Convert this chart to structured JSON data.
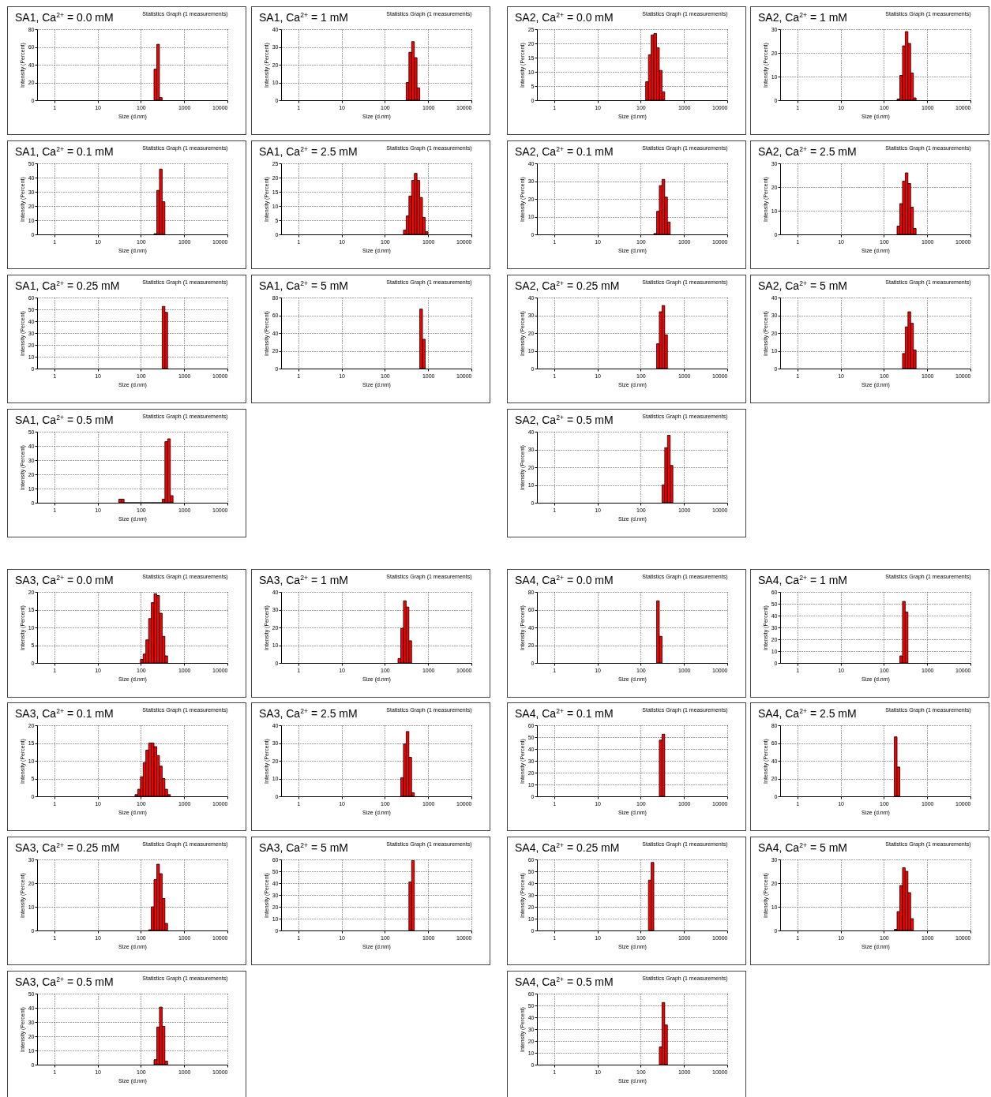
{
  "chart_data": [
    {
      "type": "histogram",
      "title": "SA1, Ca$^{2+}$ = 0.0 mM",
      "subtitle": "Statistics Graph (1 measurements)",
      "xlabel": "Size (d.nm)",
      "ylabel": "Intensity (Percent)",
      "bins": [
        201,
        233,
        269,
        311
      ],
      "values": [
        35,
        63,
        3
      ],
      "color": "#ff0000",
      "xlim": [
        0.4,
        10000
      ],
      "xticks": [
        1,
        10,
        100,
        1000,
        10000
      ],
      "ylim": [
        0,
        80
      ],
      "yticks": [
        0,
        20,
        40,
        60,
        80
      ],
      "log": "x",
      "grid": true
    },
    {
      "type": "histogram",
      "title": "SA1, Ca$^{2+}$ = 1 mM",
      "subtitle": "Statistics Graph (1 measurements)",
      "xlabel": "Size (d.nm)",
      "ylabel": "Intensity (Percent)",
      "bins": [
        311,
        359,
        415,
        480,
        554,
        640
      ],
      "values": [
        10,
        27,
        33,
        24,
        7
      ],
      "color": "#ff0000",
      "xlim": [
        0.4,
        10000
      ],
      "xticks": [
        1,
        10,
        100,
        1000,
        10000
      ],
      "ylim": [
        0,
        40
      ],
      "yticks": [
        0,
        10,
        20,
        30,
        40
      ],
      "log": "x",
      "grid": true
    },
    {
      "type": "histogram",
      "title": "SA2, Ca$^{2+}$ = 0.0 mM",
      "subtitle": "Statistics Graph (1 measurements)",
      "xlabel": "Size (d.nm)",
      "ylabel": "Intensity (Percent)",
      "bins": [
        130,
        151,
        174,
        201,
        233,
        269,
        311,
        359
      ],
      "values": [
        6.5,
        16,
        23,
        23.5,
        18.5,
        10.5,
        3
      ],
      "color": "#ff0000",
      "xlim": [
        0.4,
        10000
      ],
      "xticks": [
        1,
        10,
        100,
        1000,
        10000
      ],
      "ylim": [
        0,
        25
      ],
      "yticks": [
        0,
        5,
        10,
        15,
        20,
        25
      ],
      "log": "x",
      "grid": true
    },
    {
      "type": "histogram",
      "title": "SA2, Ca$^{2+}$ = 1 mM",
      "subtitle": "Statistics Graph (1 measurements)",
      "xlabel": "Size (d.nm)",
      "ylabel": "Intensity (Percent)",
      "bins": [
        201,
        233,
        269,
        311,
        359,
        415,
        480,
        554
      ],
      "values": [
        0.5,
        10.5,
        23,
        29,
        24,
        11.5,
        1
      ],
      "color": "#ff0000",
      "xlim": [
        0.4,
        10000
      ],
      "xticks": [
        1,
        10,
        100,
        1000,
        10000
      ],
      "ylim": [
        0,
        30
      ],
      "yticks": [
        0,
        10,
        20,
        30
      ],
      "log": "x",
      "grid": true
    },
    {
      "type": "histogram",
      "title": "SA1, Ca$^{2+}$ = 0.1 mM",
      "subtitle": "Statistics Graph (1 measurements)",
      "xlabel": "Size (d.nm)",
      "ylabel": "Intensity (Percent)",
      "bins": [
        201,
        233,
        269,
        311,
        359
      ],
      "values": [
        0.5,
        31,
        46,
        23
      ],
      "color": "#ff0000",
      "xlim": [
        0.4,
        10000
      ],
      "xticks": [
        1,
        10,
        100,
        1000,
        10000
      ],
      "ylim": [
        0,
        50
      ],
      "yticks": [
        0,
        10,
        20,
        30,
        40,
        50
      ],
      "log": "x",
      "grid": true
    },
    {
      "type": "histogram",
      "title": "SA1, Ca$^{2+}$ = 2.5 mM",
      "subtitle": "Statistics Graph (1 measurements)",
      "xlabel": "Size (d.nm)",
      "ylabel": "Intensity (Percent)",
      "bins": [
        269,
        311,
        359,
        415,
        480,
        554,
        640,
        740,
        855,
        988
      ],
      "values": [
        1.5,
        6.5,
        13.5,
        19,
        21.5,
        19,
        13,
        6,
        1
      ],
      "color": "#ff0000",
      "xlim": [
        0.4,
        10000
      ],
      "xticks": [
        1,
        10,
        100,
        1000,
        10000
      ],
      "ylim": [
        0,
        25
      ],
      "yticks": [
        0,
        5,
        10,
        15,
        20,
        25
      ],
      "log": "x",
      "grid": true
    },
    {
      "type": "histogram",
      "title": "SA2, Ca$^{2+}$ = 0.1 mM",
      "subtitle": "Statistics Graph (1 measurements)",
      "xlabel": "Size (d.nm)",
      "ylabel": "Intensity (Percent)",
      "bins": [
        201,
        233,
        269,
        311,
        359,
        415,
        480
      ],
      "values": [
        0.5,
        13,
        27.5,
        31,
        21,
        7
      ],
      "color": "#ff0000",
      "xlim": [
        0.4,
        10000
      ],
      "xticks": [
        1,
        10,
        100,
        1000,
        10000
      ],
      "ylim": [
        0,
        40
      ],
      "yticks": [
        0,
        10,
        20,
        30,
        40
      ],
      "log": "x",
      "grid": true
    },
    {
      "type": "histogram",
      "title": "SA2, Ca$^{2+}$ = 2.5 mM",
      "subtitle": "Statistics Graph (1 measurements)",
      "xlabel": "Size (d.nm)",
      "ylabel": "Intensity (Percent)",
      "bins": [
        201,
        233,
        269,
        311,
        359,
        415,
        480,
        554
      ],
      "values": [
        3.5,
        13,
        22.5,
        26,
        21.5,
        11.5,
        2.5
      ],
      "color": "#ff0000",
      "xlim": [
        0.4,
        10000
      ],
      "xticks": [
        1,
        10,
        100,
        1000,
        10000
      ],
      "ylim": [
        0,
        30
      ],
      "yticks": [
        0,
        10,
        20,
        30
      ],
      "log": "x",
      "grid": true
    },
    {
      "type": "histogram",
      "title": "SA1, Ca$^{2+}$ = 0.25 mM",
      "subtitle": "Statistics Graph (1 measurements)",
      "xlabel": "Size (d.nm)",
      "ylabel": "Intensity (Percent)",
      "bins": [
        311,
        359,
        415
      ],
      "values": [
        52.5,
        47.5
      ],
      "color": "#ff0000",
      "xlim": [
        0.4,
        10000
      ],
      "xticks": [
        1,
        10,
        100,
        1000,
        10000
      ],
      "ylim": [
        0,
        60
      ],
      "yticks": [
        0,
        10,
        20,
        30,
        40,
        50,
        60
      ],
      "log": "x",
      "grid": true
    },
    {
      "type": "histogram",
      "title": "SA1, Ca$^{2+}$ = 5 mM",
      "subtitle": "Statistics Graph (1 measurements)",
      "xlabel": "Size (d.nm)",
      "ylabel": "Intensity (Percent)",
      "bins": [
        640,
        740,
        855
      ],
      "values": [
        67,
        33
      ],
      "color": "#ff0000",
      "xlim": [
        0.4,
        10000
      ],
      "xticks": [
        1,
        10,
        100,
        1000,
        10000
      ],
      "ylim": [
        0,
        80
      ],
      "yticks": [
        0,
        20,
        40,
        60,
        80
      ],
      "log": "x",
      "grid": true
    },
    {
      "type": "histogram",
      "title": "SA2, Ca$^{2+}$ = 0.25 mM",
      "subtitle": "Statistics Graph (1 measurements)",
      "xlabel": "Size (d.nm)",
      "ylabel": "Intensity (Percent)",
      "bins": [
        233,
        269,
        311,
        359,
        415
      ],
      "values": [
        14,
        32,
        35.5,
        19
      ],
      "color": "#ff0000",
      "xlim": [
        0.4,
        10000
      ],
      "xticks": [
        1,
        10,
        100,
        1000,
        10000
      ],
      "ylim": [
        0,
        40
      ],
      "yticks": [
        0,
        10,
        20,
        30,
        40
      ],
      "log": "x",
      "grid": true
    },
    {
      "type": "histogram",
      "title": "SA2, Ca$^{2+}$ = 5 mM",
      "subtitle": "Statistics Graph (1 measurements)",
      "xlabel": "Size (d.nm)",
      "ylabel": "Intensity (Percent)",
      "bins": [
        269,
        311,
        359,
        415,
        480,
        554
      ],
      "values": [
        8.5,
        23.5,
        32,
        25.5,
        10.5
      ],
      "color": "#ff0000",
      "xlim": [
        0.4,
        10000
      ],
      "xticks": [
        1,
        10,
        100,
        1000,
        10000
      ],
      "ylim": [
        0,
        40
      ],
      "yticks": [
        0,
        10,
        20,
        30,
        40
      ],
      "log": "x",
      "grid": true
    },
    {
      "type": "histogram",
      "title": "SA1, Ca$^{2+}$ = 0.5 mM",
      "subtitle": "Statistics Graph (1 measurements)",
      "xlabel": "Size (d.nm)",
      "ylabel": "Intensity (Percent)",
      "bins": [
        30.7,
        35.5,
        41.0,
        47.4,
        54.7,
        63.2,
        73.1,
        84.5,
        97.6,
        113,
        130,
        151,
        174,
        201,
        233,
        269,
        311,
        359,
        415,
        480,
        554
      ],
      "values": [
        2.5,
        2.5,
        0,
        0,
        0,
        0,
        0,
        0,
        0,
        0,
        0,
        0,
        0,
        0,
        0,
        0,
        2.5,
        43,
        45,
        5
      ],
      "color": "#ff0000",
      "xlim": [
        0.4,
        10000
      ],
      "xticks": [
        1,
        10,
        100,
        1000,
        10000
      ],
      "ylim": [
        0,
        50
      ],
      "yticks": [
        0,
        10,
        20,
        30,
        40,
        50
      ],
      "log": "x",
      "grid": true
    },
    {
      "type": "histogram",
      "title": "SA2, Ca$^{2+}$ = 0.5 mM",
      "subtitle": "Statistics Graph (1 measurements)",
      "xlabel": "Size (d.nm)",
      "ylabel": "Intensity (Percent)",
      "bins": [
        311,
        359,
        415,
        480,
        554
      ],
      "values": [
        10,
        31,
        38,
        21
      ],
      "color": "#ff0000",
      "xlim": [
        0.4,
        10000
      ],
      "xticks": [
        1,
        10,
        100,
        1000,
        10000
      ],
      "ylim": [
        0,
        40
      ],
      "yticks": [
        0,
        10,
        20,
        30,
        40
      ],
      "log": "x",
      "grid": true
    },
    {
      "type": "histogram",
      "title": "SA3, Ca$^{2+}$ = 0.0 mM",
      "subtitle": "Statistics Graph (1 measurements)",
      "xlabel": "Size (d.nm)",
      "ylabel": "Intensity (Percent)",
      "bins": [
        97.6,
        113,
        130,
        151,
        174,
        201,
        233,
        269,
        311,
        359,
        415
      ],
      "values": [
        1,
        2.5,
        6.5,
        12.5,
        17,
        19.5,
        19,
        14,
        7.5,
        2
      ],
      "color": "#ff0000",
      "xlim": [
        0.4,
        10000
      ],
      "xticks": [
        1,
        10,
        100,
        1000,
        10000
      ],
      "ylim": [
        0,
        20
      ],
      "yticks": [
        0,
        5,
        10,
        15,
        20
      ],
      "log": "x",
      "grid": true
    },
    {
      "type": "histogram",
      "title": "SA3, Ca$^{2+}$ = 1 mM",
      "subtitle": "Statistics Graph (1 measurements)",
      "xlabel": "Size (d.nm)",
      "ylabel": "Intensity (Percent)",
      "bins": [
        201,
        233,
        269,
        311,
        359,
        415
      ],
      "values": [
        2.5,
        19.5,
        35,
        31.5,
        12.5
      ],
      "color": "#ff0000",
      "xlim": [
        0.4,
        10000
      ],
      "xticks": [
        1,
        10,
        100,
        1000,
        10000
      ],
      "ylim": [
        0,
        40
      ],
      "yticks": [
        0,
        10,
        20,
        30,
        40
      ],
      "log": "x",
      "grid": true
    },
    {
      "type": "histogram",
      "title": "SA4, Ca$^{2+}$ = 0.0 mM",
      "subtitle": "Statistics Graph (1 measurements)",
      "xlabel": "Size (d.nm)",
      "ylabel": "Intensity (Percent)",
      "bins": [
        233,
        269,
        311
      ],
      "values": [
        70,
        30
      ],
      "color": "#ff0000",
      "xlim": [
        0.4,
        10000
      ],
      "xticks": [
        1,
        10,
        100,
        1000,
        10000
      ],
      "ylim": [
        0,
        80
      ],
      "yticks": [
        0,
        20,
        40,
        60,
        80
      ],
      "log": "x",
      "grid": true
    },
    {
      "type": "histogram",
      "title": "SA4, Ca$^{2+}$ = 1 mM",
      "subtitle": "Statistics Graph (1 measurements)",
      "xlabel": "Size (d.nm)",
      "ylabel": "Intensity (Percent)",
      "bins": [
        233,
        269,
        311,
        359
      ],
      "values": [
        6,
        52,
        43
      ],
      "color": "#ff0000",
      "xlim": [
        0.4,
        10000
      ],
      "xticks": [
        1,
        10,
        100,
        1000,
        10000
      ],
      "ylim": [
        0,
        60
      ],
      "yticks": [
        0,
        10,
        20,
        30,
        40,
        50,
        60
      ],
      "log": "x",
      "grid": true
    },
    {
      "type": "histogram",
      "title": "SA3, Ca$^{2+}$ = 0.1 mM",
      "subtitle": "Statistics Graph (1 measurements)",
      "xlabel": "Size (d.nm)",
      "ylabel": "Intensity (Percent)",
      "bins": [
        73.1,
        84.5,
        97.6,
        113,
        130,
        151,
        174,
        201,
        233,
        269,
        311,
        359,
        415,
        480
      ],
      "values": [
        0.5,
        2,
        5.5,
        9.5,
        13,
        15,
        15,
        14,
        11.5,
        8.5,
        5,
        2,
        0.5
      ],
      "color": "#ff0000",
      "xlim": [
        0.4,
        10000
      ],
      "xticks": [
        1,
        10,
        100,
        1000,
        10000
      ],
      "ylim": [
        0,
        20
      ],
      "yticks": [
        0,
        5,
        10,
        15,
        20
      ],
      "log": "x",
      "grid": true
    },
    {
      "type": "histogram",
      "title": "SA3, Ca$^{2+}$ = 2.5 mM",
      "subtitle": "Statistics Graph (1 measurements)",
      "xlabel": "Size (d.nm)",
      "ylabel": "Intensity (Percent)",
      "bins": [
        233,
        269,
        311,
        359,
        415,
        480
      ],
      "values": [
        10.5,
        29.5,
        36.5,
        22,
        2
      ],
      "color": "#ff0000",
      "xlim": [
        0.4,
        10000
      ],
      "xticks": [
        1,
        10,
        100,
        1000,
        10000
      ],
      "ylim": [
        0,
        40
      ],
      "yticks": [
        0,
        10,
        20,
        30,
        40
      ],
      "log": "x",
      "grid": true
    },
    {
      "type": "histogram",
      "title": "SA4, Ca$^{2+}$ = 0.1 mM",
      "subtitle": "Statistics Graph (1 measurements)",
      "xlabel": "Size (d.nm)",
      "ylabel": "Intensity (Percent)",
      "bins": [
        269,
        311,
        359
      ],
      "values": [
        47.5,
        52.5
      ],
      "color": "#ff0000",
      "xlim": [
        0.4,
        10000
      ],
      "xticks": [
        1,
        10,
        100,
        1000,
        10000
      ],
      "ylim": [
        0,
        60
      ],
      "yticks": [
        0,
        10,
        20,
        30,
        40,
        50,
        60
      ],
      "log": "x",
      "grid": true
    },
    {
      "type": "histogram",
      "title": "SA4, Ca$^{2+}$ = 2.5 mM",
      "subtitle": "Statistics Graph (1 measurements)",
      "xlabel": "Size (d.nm)",
      "ylabel": "Intensity (Percent)",
      "bins": [
        174,
        201,
        233
      ],
      "values": [
        67,
        33
      ],
      "color": "#ff0000",
      "xlim": [
        0.4,
        10000
      ],
      "xticks": [
        1,
        10,
        100,
        1000,
        10000
      ],
      "ylim": [
        0,
        80
      ],
      "yticks": [
        0,
        20,
        40,
        60,
        80
      ],
      "log": "x",
      "grid": true
    },
    {
      "type": "histogram",
      "title": "SA3, Ca$^{2+}$ = 0.25 mM",
      "subtitle": "Statistics Graph (1 measurements)",
      "xlabel": "Size (d.nm)",
      "ylabel": "Intensity (Percent)",
      "bins": [
        151,
        174,
        201,
        233,
        269,
        311,
        359,
        415
      ],
      "values": [
        0.3,
        10,
        21.5,
        28,
        24,
        13.5,
        3
      ],
      "color": "#ff0000",
      "xlim": [
        0.4,
        10000
      ],
      "xticks": [
        1,
        10,
        100,
        1000,
        10000
      ],
      "ylim": [
        0,
        30
      ],
      "yticks": [
        0,
        10,
        20,
        30
      ],
      "log": "x",
      "grid": true
    },
    {
      "type": "histogram",
      "title": "SA3, Ca$^{2+}$ = 5 mM",
      "subtitle": "Statistics Graph (1 measurements)",
      "xlabel": "Size (d.nm)",
      "ylabel": "Intensity (Percent)",
      "bins": [
        359,
        415,
        480
      ],
      "values": [
        41,
        59
      ],
      "color": "#ff0000",
      "xlim": [
        0.4,
        10000
      ],
      "xticks": [
        1,
        10,
        100,
        1000,
        10000
      ],
      "ylim": [
        0,
        60
      ],
      "yticks": [
        0,
        10,
        20,
        30,
        40,
        50,
        60
      ],
      "log": "x",
      "grid": true
    },
    {
      "type": "histogram",
      "title": "SA4, Ca$^{2+}$ = 0.25 mM",
      "subtitle": "Statistics Graph (1 measurements)",
      "xlabel": "Size (d.nm)",
      "ylabel": "Intensity (Percent)",
      "bins": [
        151,
        174,
        201
      ],
      "values": [
        42.5,
        57.5
      ],
      "color": "#ff0000",
      "xlim": [
        0.4,
        10000
      ],
      "xticks": [
        1,
        10,
        100,
        1000,
        10000
      ],
      "ylim": [
        0,
        60
      ],
      "yticks": [
        0,
        10,
        20,
        30,
        40,
        50,
        60
      ],
      "log": "x",
      "grid": true
    },
    {
      "type": "histogram",
      "title": "SA4, Ca$^{2+}$ = 5 mM",
      "subtitle": "Statistics Graph (1 measurements)",
      "xlabel": "Size (d.nm)",
      "ylabel": "Intensity (Percent)",
      "bins": [
        174,
        201,
        233,
        269,
        311,
        359,
        415,
        480
      ],
      "values": [
        0.5,
        8,
        19,
        26.5,
        25,
        16,
        5
      ],
      "color": "#ff0000",
      "xlim": [
        0.4,
        10000
      ],
      "xticks": [
        1,
        10,
        100,
        1000,
        10000
      ],
      "ylim": [
        0,
        30
      ],
      "yticks": [
        0,
        10,
        20,
        30
      ],
      "log": "x",
      "grid": true
    },
    {
      "type": "histogram",
      "title": "SA3, Ca$^{2+}$ = 0.5 mM",
      "subtitle": "Statistics Graph (1 measurements)",
      "xlabel": "Size (d.nm)",
      "ylabel": "Intensity (Percent)",
      "bins": [
        201,
        233,
        269,
        311,
        359,
        415
      ],
      "values": [
        3.5,
        26.5,
        40.5,
        27,
        2.5
      ],
      "color": "#ff0000",
      "xlim": [
        0.4,
        10000
      ],
      "xticks": [
        1,
        10,
        100,
        1000,
        10000
      ],
      "ylim": [
        0,
        50
      ],
      "yticks": [
        0,
        10,
        20,
        30,
        40,
        50
      ],
      "log": "x",
      "grid": true
    },
    {
      "type": "histogram",
      "title": "SA4, Ca$^{2+}$ = 0.5 mM",
      "subtitle": "Statistics Graph (1 measurements)",
      "xlabel": "Size (d.nm)",
      "ylabel": "Intensity (Percent)",
      "bins": [
        269,
        311,
        359,
        415
      ],
      "values": [
        15,
        52.5,
        33.5
      ],
      "color": "#ff0000",
      "xlim": [
        0.4,
        10000
      ],
      "xticks": [
        1,
        10,
        100,
        1000,
        10000
      ],
      "ylim": [
        0,
        60
      ],
      "yticks": [
        0,
        10,
        20,
        30,
        40,
        50,
        60
      ],
      "log": "x",
      "grid": true
    }
  ]
}
